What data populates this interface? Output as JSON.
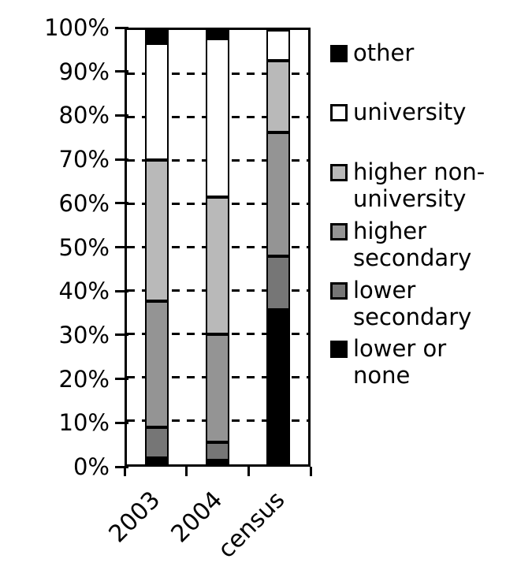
{
  "chart_data": {
    "type": "bar",
    "subtype": "100%-stacked-column",
    "title": "",
    "xlabel": "",
    "ylabel": "",
    "categories": [
      "2003",
      "2004",
      "census"
    ],
    "series": [
      {
        "name": "lower or none",
        "color": "#000000",
        "values": [
          1.5,
          1.0,
          35.5
        ]
      },
      {
        "name": "lower secondary",
        "color": "#767676",
        "values": [
          7.0,
          4.0,
          12.5
        ]
      },
      {
        "name": "higher secondary",
        "color": "#949494",
        "values": [
          29.0,
          25.0,
          28.5
        ]
      },
      {
        "name": "higher non-university",
        "color": "#b9b9b9",
        "values": [
          32.5,
          31.5,
          16.5
        ]
      },
      {
        "name": "university",
        "color": "#ffffff",
        "values": [
          27.0,
          36.5,
          7.0
        ]
      },
      {
        "name": "other",
        "color": "#000000",
        "values": [
          3.0,
          2.0,
          0.0
        ]
      }
    ],
    "ylim": [
      0,
      100
    ],
    "ytick_labels": [
      "0%",
      "10%",
      "20%",
      "30%",
      "40%",
      "50%",
      "60%",
      "70%",
      "80%",
      "90%",
      "100%"
    ],
    "grid": "horizontal-dashed",
    "plot_border": "solid-black",
    "bar_outline_color": "#000000",
    "legend_position": "right",
    "legend": [
      {
        "label_lines": [
          "other"
        ],
        "color": "#000000",
        "border": "#000000"
      },
      {
        "label_lines": [
          "university"
        ],
        "color": "#ffffff",
        "border": "#000000"
      },
      {
        "label_lines": [
          "higher non-",
          "university"
        ],
        "color": "#b9b9b9",
        "border": "#000000"
      },
      {
        "label_lines": [
          "higher",
          "secondary"
        ],
        "color": "#949494",
        "border": "#000000"
      },
      {
        "label_lines": [
          "lower",
          "secondary"
        ],
        "color": "#767676",
        "border": "#000000"
      },
      {
        "label_lines": [
          "lower or",
          "none"
        ],
        "color": "#000000",
        "border": "#000000"
      }
    ]
  }
}
